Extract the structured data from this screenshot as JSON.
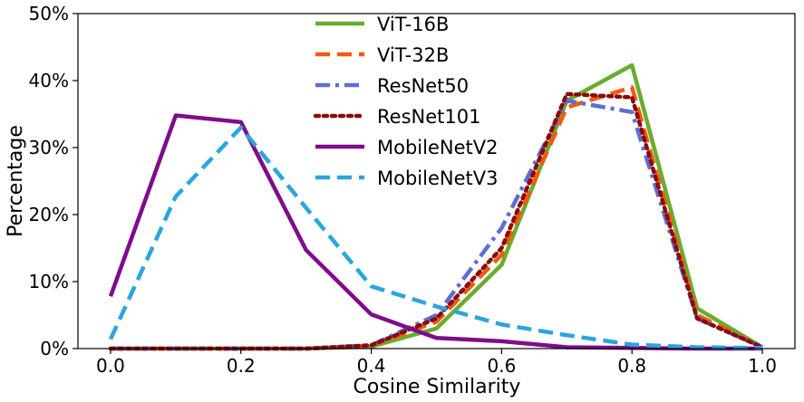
{
  "chart_data": {
    "type": "line",
    "title": "",
    "xlabel": "Cosine Similarity",
    "ylabel": "Percentage",
    "xlim": [
      -0.05,
      1.05
    ],
    "ylim": [
      0,
      50
    ],
    "xticks": [
      "0.0",
      "0.2",
      "0.4",
      "0.6",
      "0.8",
      "1.0"
    ],
    "xtick_values": [
      0.0,
      0.2,
      0.4,
      0.6,
      0.8,
      1.0
    ],
    "yticks": [
      "0%",
      "10%",
      "20%",
      "30%",
      "40%",
      "50%"
    ],
    "ytick_values": [
      0,
      10,
      20,
      30,
      40,
      50
    ],
    "grid": false,
    "legend_position": "top-center",
    "x": [
      0.0,
      0.1,
      0.2,
      0.3,
      0.4,
      0.5,
      0.6,
      0.7,
      0.8,
      0.9,
      1.0
    ],
    "series": [
      {
        "name": "ViT-16B",
        "color": "#6aac2f",
        "dash": "solid",
        "values": [
          0,
          0,
          0,
          0,
          0.3,
          3,
          12.5,
          37,
          42.3,
          6,
          0.2
        ]
      },
      {
        "name": "ViT-32B",
        "color": "#f25a0f",
        "dash": "dashed",
        "values": [
          0,
          0,
          0,
          0,
          0.4,
          4,
          14,
          36,
          39,
          5,
          0.2
        ]
      },
      {
        "name": "ResNet50",
        "color": "#5b6fd6",
        "dash": "dashdot",
        "values": [
          0,
          0,
          0,
          0,
          0.5,
          5,
          18,
          37,
          35.3,
          4.5,
          0.2
        ]
      },
      {
        "name": "ResNet101",
        "color": "#8b0a0a",
        "dash": "dotted",
        "values": [
          0,
          0,
          0,
          0,
          0.5,
          4.5,
          15,
          38,
          37.5,
          4.5,
          0.2
        ]
      },
      {
        "name": "MobileNetV2",
        "color": "#7f0c8a",
        "dash": "solid",
        "values": [
          7.8,
          34.8,
          33.8,
          14.7,
          5.1,
          1.6,
          1.1,
          0.2,
          0.1,
          0,
          0
        ]
      },
      {
        "name": "MobileNetV3",
        "color": "#2aa6dc",
        "dash": "dashed",
        "values": [
          1.4,
          22.7,
          33,
          21,
          9.3,
          6.3,
          3.6,
          2,
          0.6,
          0.2,
          0.1
        ]
      }
    ]
  }
}
